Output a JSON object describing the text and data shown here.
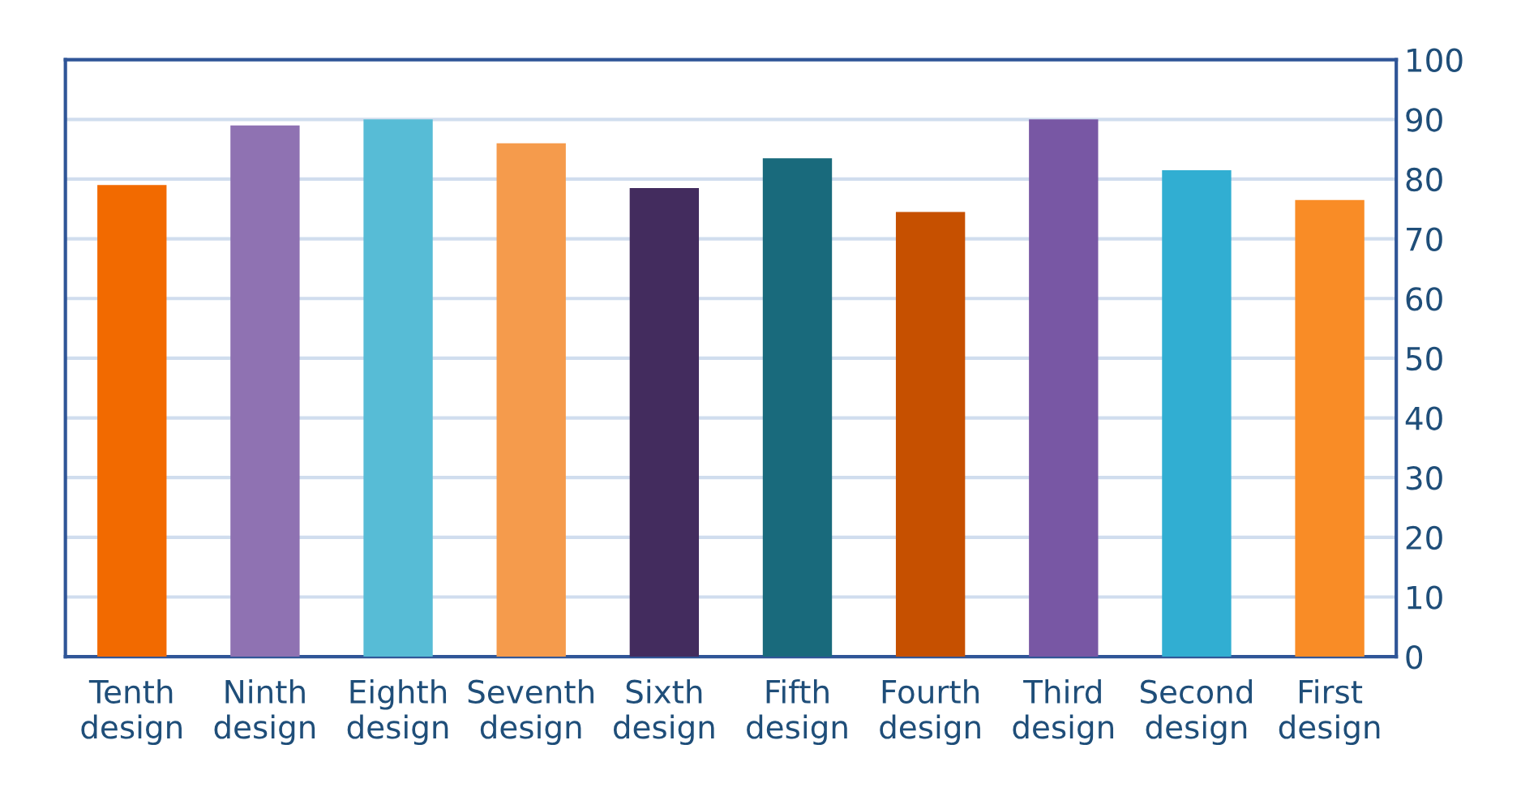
{
  "chart_data": {
    "type": "bar",
    "categories": [
      "Tenth\ndesign",
      "Ninth\ndesign",
      "Eighth\ndesign",
      "Seventh\ndesign",
      "Sixth\ndesign",
      "Fifth\ndesign",
      "Fourth\ndesign",
      "Third\ndesign",
      "Second\ndesign",
      "First\ndesign"
    ],
    "values": [
      79,
      89,
      90,
      86,
      78.5,
      83.5,
      74.5,
      90,
      81.5,
      76.5
    ],
    "colors": [
      "#f26a00",
      "#8f72b2",
      "#57bcd6",
      "#f59b4c",
      "#432c5e",
      "#196a7c",
      "#c65000",
      "#7857a4",
      "#31aed2",
      "#f98c26"
    ],
    "ylim": [
      0,
      100
    ],
    "yticks": [
      0,
      10,
      20,
      30,
      40,
      50,
      60,
      70,
      80,
      90,
      100
    ],
    "grid": "y"
  }
}
